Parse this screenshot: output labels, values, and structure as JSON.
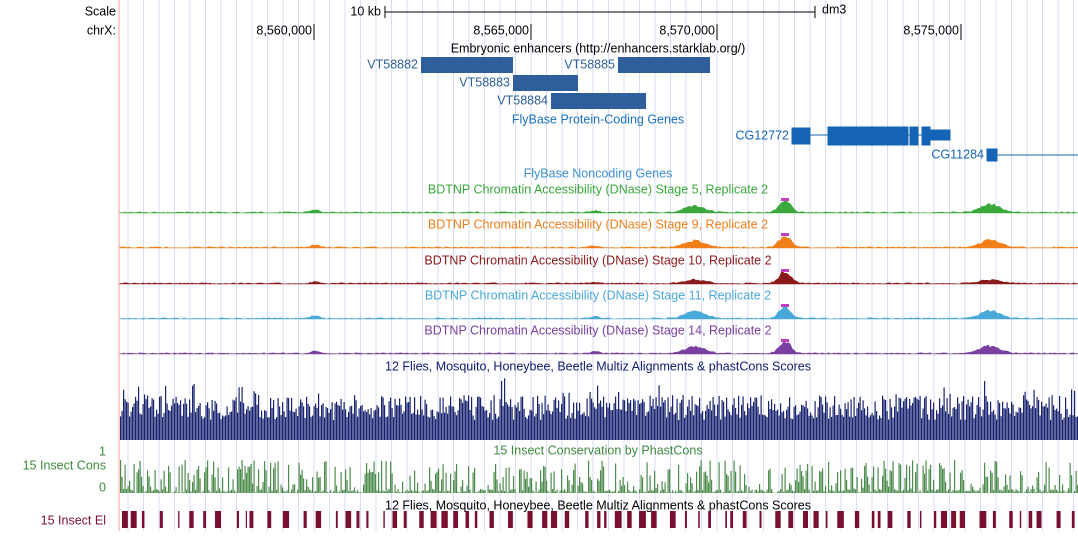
{
  "ruler": {
    "scale": "Scale",
    "scale_bar": "10 kb",
    "assembly": "dm3",
    "chrom": "chrX:",
    "positions": [
      "8,560,000",
      "8,565,000",
      "8,570,000",
      "8,575,000"
    ]
  },
  "enhancers": {
    "title": "Embryonic enhancers (http://enhancers.starklab.org/)",
    "items": [
      "VT58882",
      "VT58883",
      "VT58884",
      "VT58885"
    ]
  },
  "protein_genes": {
    "title": "FlyBase Protein-Coding Genes",
    "items": [
      "CG12772",
      "CG11284"
    ]
  },
  "noncoding_genes": {
    "title": "FlyBase Noncoding Genes"
  },
  "dnase_tracks": [
    "BDTNP Chromatin Accessibility (DNase) Stage 5, Replicate 2",
    "BDTNP Chromatin Accessibility (DNase) Stage 9, Replicate 2",
    "BDTNP Chromatin Accessibility (DNase) Stage 10, Replicate 2",
    "BDTNP Chromatin Accessibility (DNase) Stage 11, Replicate 2",
    "BDTNP Chromatin Accessibility (DNase) Stage 14, Replicate 2"
  ],
  "multiz": {
    "title": "12 Flies, Mosquito, Honeybee, Beetle Multiz Alignments & phastCons Scores"
  },
  "conservation": {
    "title": "15 Insect Conservation by PhastCons",
    "label": "15 Insect Cons",
    "max": "1",
    "min": "0"
  },
  "elements": {
    "title": "12 Flies, Mosquito, Honeybee, Beetle Multiz Alignments & phastCons Scores",
    "label": "15 Insect El"
  }
}
